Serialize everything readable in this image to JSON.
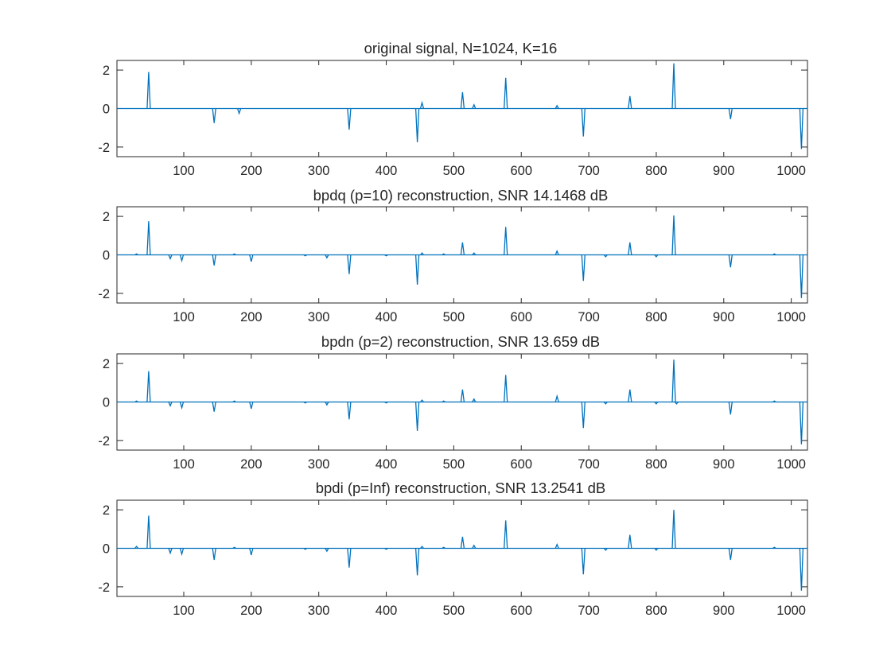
{
  "chart_data": [
    {
      "type": "line",
      "title": "original signal, N=1024, K=16",
      "xlim": [
        1,
        1024
      ],
      "ylim": [
        -2.5,
        2.5
      ],
      "xticks": [
        100,
        200,
        300,
        400,
        500,
        600,
        700,
        800,
        900,
        1000
      ],
      "yticks": [
        2,
        0,
        -2
      ],
      "x": [
        48,
        145,
        182,
        345,
        446,
        453,
        513,
        530,
        577,
        653,
        692,
        761,
        826,
        910,
        1015
      ],
      "values": [
        1.9,
        -0.75,
        -0.25,
        -1.1,
        -1.75,
        0.3,
        0.85,
        0.2,
        1.6,
        0.15,
        -1.45,
        0.65,
        2.35,
        -0.55,
        -2.1
      ]
    },
    {
      "type": "line",
      "title": "bpdq (p=10) reconstruction, SNR 14.1468 dB",
      "xlim": [
        1,
        1024
      ],
      "ylim": [
        -2.5,
        2.5
      ],
      "xticks": [
        100,
        200,
        300,
        400,
        500,
        600,
        700,
        800,
        900,
        1000
      ],
      "yticks": [
        2,
        0,
        -2
      ],
      "x": [
        30,
        48,
        80,
        97,
        145,
        175,
        200,
        280,
        312,
        345,
        400,
        446,
        453,
        485,
        513,
        530,
        577,
        653,
        692,
        725,
        761,
        800,
        826,
        910,
        975,
        1015
      ],
      "values": [
        0.05,
        1.75,
        -0.2,
        -0.3,
        -0.55,
        0.05,
        -0.35,
        -0.05,
        -0.15,
        -1.0,
        -0.05,
        -1.55,
        0.1,
        0.05,
        0.65,
        0.1,
        1.45,
        0.2,
        -1.35,
        -0.1,
        0.65,
        -0.1,
        2.05,
        -0.65,
        0.05,
        -2.25
      ]
    },
    {
      "type": "line",
      "title": "bpdn (p=2) reconstruction, SNR 13.659 dB",
      "xlim": [
        1,
        1024
      ],
      "ylim": [
        -2.5,
        2.5
      ],
      "xticks": [
        100,
        200,
        300,
        400,
        500,
        600,
        700,
        800,
        900,
        1000
      ],
      "yticks": [
        2,
        0,
        -2
      ],
      "x": [
        30,
        48,
        80,
        97,
        145,
        175,
        200,
        280,
        312,
        345,
        400,
        446,
        453,
        485,
        513,
        530,
        577,
        653,
        692,
        725,
        761,
        800,
        826,
        830,
        910,
        975,
        1015
      ],
      "values": [
        0.05,
        1.6,
        -0.2,
        -0.3,
        -0.5,
        0.05,
        -0.35,
        -0.05,
        -0.15,
        -0.9,
        -0.05,
        -1.5,
        0.1,
        0.05,
        0.65,
        0.15,
        1.4,
        0.3,
        -1.35,
        -0.1,
        0.65,
        -0.1,
        2.2,
        -0.1,
        -0.65,
        0.05,
        -2.2
      ]
    },
    {
      "type": "line",
      "title": "bpdi (p=Inf) reconstruction, SNR 13.2541 dB",
      "xlim": [
        1,
        1024
      ],
      "ylim": [
        -2.5,
        2.5
      ],
      "xticks": [
        100,
        200,
        300,
        400,
        500,
        600,
        700,
        800,
        900,
        1000
      ],
      "yticks": [
        2,
        0,
        -2
      ],
      "x": [
        30,
        48,
        80,
        97,
        145,
        175,
        200,
        280,
        312,
        345,
        400,
        446,
        453,
        485,
        513,
        530,
        577,
        653,
        692,
        725,
        761,
        800,
        826,
        910,
        975,
        1015
      ],
      "values": [
        0.1,
        1.7,
        -0.25,
        -0.3,
        -0.6,
        0.05,
        -0.35,
        -0.05,
        -0.15,
        -1.0,
        -0.05,
        -1.4,
        0.1,
        0.05,
        0.6,
        0.15,
        1.45,
        0.2,
        -1.35,
        -0.1,
        0.7,
        -0.1,
        2.0,
        -0.6,
        0.05,
        -2.2
      ]
    }
  ],
  "colors": {
    "line": "#0072BD",
    "axis": "#262626",
    "background": "#ffffff"
  }
}
